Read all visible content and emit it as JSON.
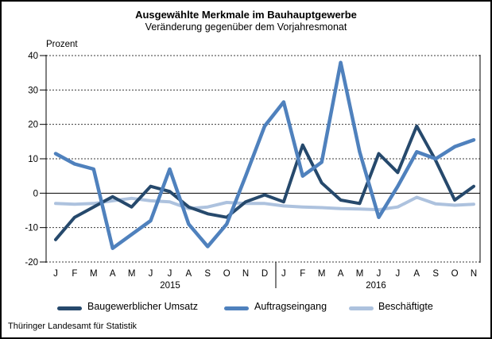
{
  "title": "Ausgewählte Merkmale im Bauhauptgewerbe",
  "subtitle": "Veränderung gegenüber dem Vorjahresmonat",
  "footer": "Thüringer Landesamt für Statistik",
  "chart_data": {
    "type": "line",
    "title": "Ausgewählte Merkmale im Bauhauptgewerbe",
    "subtitle": "Veränderung gegenüber dem Vorjahresmonat",
    "ylabel": "Prozent",
    "ylim": [
      -20,
      40
    ],
    "ytick_interval": 10,
    "yticks": [
      40,
      30,
      20,
      10,
      0,
      -10,
      -20
    ],
    "grid": "horizontal-dashed",
    "zero_line": true,
    "legend_position": "bottom",
    "categories": [
      "J",
      "F",
      "M",
      "A",
      "M",
      "J",
      "J",
      "A",
      "S",
      "O",
      "N",
      "D",
      "J",
      "F",
      "M",
      "A",
      "M",
      "J",
      "J",
      "A",
      "S",
      "O",
      "N"
    ],
    "year_groups": [
      {
        "label": "2015",
        "start": 0,
        "end": 11
      },
      {
        "label": "2016",
        "start": 12,
        "end": 22
      }
    ],
    "series": [
      {
        "name": "Baugewerblicher Umsatz",
        "color": "#26496C",
        "values": [
          -13.5,
          -7,
          -4,
          -1,
          -4,
          2,
          0.5,
          -4,
          -6,
          -7,
          -2.5,
          -0.5,
          -2.5,
          14,
          3,
          -2,
          -3,
          11.5,
          6,
          19.5,
          9.5,
          -2,
          2
        ]
      },
      {
        "name": "Auftragseingang",
        "color": "#4F81BD",
        "values": [
          11.5,
          8.5,
          7,
          -16,
          -12,
          -8,
          7,
          -9,
          -15.5,
          -9,
          5,
          19.5,
          26.5,
          5,
          9,
          38,
          12,
          -7,
          2,
          12,
          10,
          13.5,
          15.5
        ]
      },
      {
        "name": "Beschäftigte",
        "color": "#ADC2DE",
        "values": [
          -3,
          -3.2,
          -3,
          -2.2,
          -1.5,
          -2.2,
          -2.5,
          -4.5,
          -4,
          -2.7,
          -3,
          -3,
          -3.7,
          -4,
          -4.2,
          -4.5,
          -4.6,
          -4.8,
          -4,
          -1.2,
          -3.1,
          -3.5,
          -3.2
        ]
      }
    ]
  }
}
